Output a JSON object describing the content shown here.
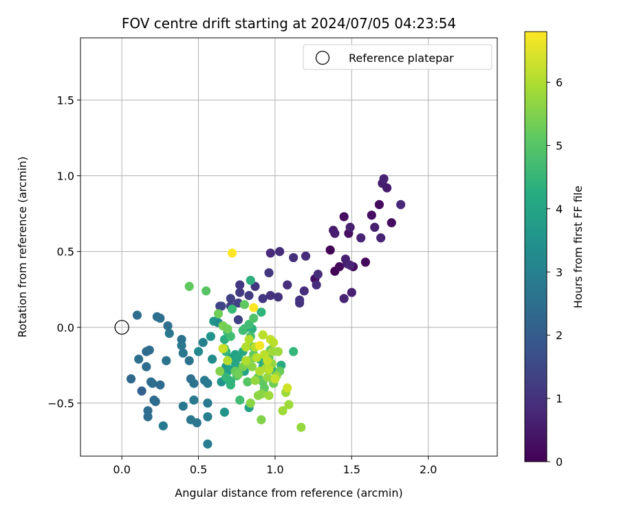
{
  "chart_data": {
    "type": "scatter",
    "title": "FOV centre drift starting at 2024/07/05 04:23:54",
    "xlabel": "Angular distance from reference (arcmin)",
    "ylabel": "Rotation from reference (arcmin)",
    "xlim": [
      -0.27,
      2.45
    ],
    "ylim": [
      -0.85,
      1.91
    ],
    "x_ticks": [
      0.0,
      0.5,
      1.0,
      1.5,
      2.0
    ],
    "x_tick_labels": [
      "0.0",
      "0.5",
      "1.0",
      "1.5",
      "2.0"
    ],
    "y_ticks": [
      -0.5,
      0.0,
      0.5,
      1.0,
      1.5
    ],
    "y_tick_labels": [
      "−0.5",
      "0.0",
      "0.5",
      "1.0",
      "1.5"
    ],
    "grid": true,
    "legend": {
      "placement": "top-right",
      "entries": [
        "Reference platepar"
      ]
    },
    "reference_point": {
      "x": 0.0,
      "y": 0.0,
      "label": "Reference platepar"
    },
    "colorbar": {
      "label": "Hours from first FF file",
      "range": [
        0,
        6.8
      ],
      "ticks": [
        0,
        1,
        2,
        3,
        4,
        5,
        6
      ],
      "tick_labels": [
        "0",
        "1",
        "2",
        "3",
        "4",
        "5",
        "6"
      ],
      "colormap": "viridis"
    },
    "series": [
      {
        "points": [
          [
            1.36,
            0.51,
            0.05
          ],
          [
            1.39,
            0.37,
            0.05
          ],
          [
            1.42,
            0.4,
            0.15
          ],
          [
            1.45,
            0.73,
            0.2
          ],
          [
            1.48,
            0.62,
            0.25
          ],
          [
            1.51,
            0.4,
            0.2
          ],
          [
            1.59,
            0.43,
            0.15
          ],
          [
            1.63,
            0.74,
            0.25
          ],
          [
            1.68,
            0.81,
            0.2
          ],
          [
            1.76,
            0.69,
            0.2
          ],
          [
            1.26,
            0.32,
            0.3
          ],
          [
            1.38,
            0.64,
            0.5
          ],
          [
            1.39,
            0.62,
            0.55
          ],
          [
            1.46,
            0.45,
            0.6
          ],
          [
            1.47,
            0.42,
            0.6
          ],
          [
            1.45,
            0.19,
            0.7
          ],
          [
            1.49,
            0.66,
            0.6
          ],
          [
            1.5,
            0.23,
            0.6
          ],
          [
            1.49,
            0.41,
            0.7
          ],
          [
            1.56,
            0.59,
            0.7
          ],
          [
            1.65,
            0.66,
            0.6
          ],
          [
            1.69,
            0.59,
            0.7
          ],
          [
            1.7,
            0.95,
            0.55
          ],
          [
            1.71,
            0.98,
            0.65
          ],
          [
            1.73,
            0.92,
            0.5
          ],
          [
            1.82,
            0.81,
            0.75
          ],
          [
            0.97,
            0.49,
            0.8
          ],
          [
            1.03,
            0.5,
            0.85
          ],
          [
            1.08,
            0.28,
            0.9
          ],
          [
            1.12,
            0.46,
            0.95
          ],
          [
            1.2,
            0.47,
            0.9
          ],
          [
            1.16,
            0.16,
            1.0
          ],
          [
            1.16,
            0.18,
            1.0
          ],
          [
            1.19,
            0.24,
            0.9
          ],
          [
            1.27,
            0.28,
            0.9
          ],
          [
            1.28,
            0.35,
            0.9
          ],
          [
            0.97,
            0.21,
            1.0
          ],
          [
            1.02,
            0.2,
            1.0
          ],
          [
            0.96,
            0.36,
            1.1
          ],
          [
            0.92,
            0.19,
            1.1
          ],
          [
            0.77,
            0.28,
            1.1
          ],
          [
            0.77,
            0.23,
            1.2
          ],
          [
            0.87,
            0.27,
            1.1
          ],
          [
            0.83,
            0.21,
            1.2
          ],
          [
            0.76,
            0.16,
            1.3
          ],
          [
            0.71,
            0.19,
            1.3
          ],
          [
            0.64,
            0.14,
            1.3
          ],
          [
            0.65,
            0.14,
            1.4
          ],
          [
            0.76,
            0.05,
            1.3
          ],
          [
            0.71,
            0.14,
            1.3
          ],
          [
            0.1,
            0.08,
            2.4
          ],
          [
            0.23,
            0.07,
            2.4
          ],
          [
            0.25,
            0.06,
            2.5
          ],
          [
            0.3,
            0.01,
            2.5
          ],
          [
            0.31,
            -0.04,
            2.7
          ],
          [
            0.11,
            -0.21,
            2.5
          ],
          [
            0.16,
            -0.16,
            2.3
          ],
          [
            0.18,
            -0.15,
            2.4
          ],
          [
            0.16,
            -0.26,
            2.4
          ],
          [
            0.06,
            -0.34,
            2.3
          ],
          [
            0.13,
            -0.42,
            2.1
          ],
          [
            0.19,
            -0.36,
            2.4
          ],
          [
            0.2,
            -0.37,
            2.4
          ],
          [
            0.25,
            -0.38,
            2.4
          ],
          [
            0.29,
            -0.22,
            2.6
          ],
          [
            0.17,
            -0.55,
            2.4
          ],
          [
            0.17,
            -0.59,
            2.4
          ],
          [
            0.21,
            -0.48,
            2.3
          ],
          [
            0.22,
            -0.49,
            2.4
          ],
          [
            0.27,
            -0.65,
            2.8
          ],
          [
            0.39,
            -0.08,
            2.6
          ],
          [
            0.39,
            -0.12,
            2.7
          ],
          [
            0.4,
            -0.17,
            2.7
          ],
          [
            0.44,
            -0.22,
            2.6
          ],
          [
            0.45,
            -0.34,
            2.5
          ],
          [
            0.47,
            -0.37,
            2.6
          ],
          [
            0.47,
            -0.48,
            2.8
          ],
          [
            0.4,
            -0.52,
            2.7
          ],
          [
            0.45,
            -0.61,
            2.7
          ],
          [
            0.49,
            -0.63,
            2.7
          ],
          [
            0.5,
            -0.16,
            3.2
          ],
          [
            0.53,
            -0.1,
            3.0
          ],
          [
            0.54,
            -0.35,
            2.8
          ],
          [
            0.56,
            -0.37,
            2.8
          ],
          [
            0.56,
            -0.5,
            2.8
          ],
          [
            0.56,
            -0.59,
            2.9
          ],
          [
            0.56,
            -0.77,
            2.9
          ],
          [
            0.58,
            -0.06,
            3.5
          ],
          [
            0.59,
            -0.21,
            3.3
          ],
          [
            0.6,
            0.04,
            3.6
          ],
          [
            0.63,
            0.03,
            3.3
          ],
          [
            0.66,
            0.01,
            3.3
          ],
          [
            0.66,
            -0.14,
            3.4
          ],
          [
            0.65,
            -0.36,
            3.5
          ],
          [
            0.67,
            -0.56,
            3.5
          ],
          [
            0.68,
            -0.26,
            3.6
          ],
          [
            0.69,
            -0.29,
            3.6
          ],
          [
            0.7,
            -0.28,
            3.8
          ],
          [
            0.71,
            -0.36,
            3.9
          ],
          [
            0.72,
            -0.2,
            3.8
          ],
          [
            0.74,
            -0.18,
            3.9
          ],
          [
            0.74,
            -0.24,
            4.0
          ],
          [
            0.75,
            -0.3,
            4.1
          ],
          [
            0.76,
            -0.2,
            4.0
          ],
          [
            0.78,
            -0.27,
            4.0
          ],
          [
            0.79,
            -0.16,
            4.1
          ],
          [
            0.8,
            -0.01,
            4.3
          ],
          [
            0.8,
            -0.29,
            3.9
          ],
          [
            0.83,
            -0.53,
            3.9
          ],
          [
            0.84,
            0.31,
            4.3
          ],
          [
            0.85,
            -0.01,
            4.3
          ],
          [
            0.87,
            -0.2,
            4.2
          ],
          [
            0.9,
            -0.21,
            4.3
          ],
          [
            0.91,
            0.1,
            4.4
          ],
          [
            0.92,
            -0.26,
            4.2
          ],
          [
            0.94,
            -0.22,
            4.3
          ],
          [
            0.98,
            -0.28,
            4.3
          ],
          [
            1.04,
            -0.25,
            4.2
          ],
          [
            1.12,
            -0.16,
            4.5
          ],
          [
            0.67,
            -0.08,
            4.2
          ],
          [
            0.68,
            -0.16,
            4.4
          ],
          [
            0.68,
            -0.33,
            4.5
          ],
          [
            0.7,
            -0.35,
            4.5
          ],
          [
            0.71,
            -0.38,
            4.4
          ],
          [
            0.69,
            -0.03,
            4.6
          ],
          [
            0.71,
            -0.06,
            4.7
          ],
          [
            0.72,
            0.12,
            4.6
          ],
          [
            0.79,
            -0.02,
            4.7
          ],
          [
            0.83,
            0.02,
            4.7
          ],
          [
            0.84,
            -0.06,
            4.8
          ],
          [
            0.86,
            -0.13,
            4.9
          ],
          [
            0.75,
            -0.32,
            4.8
          ],
          [
            0.77,
            -0.48,
            4.7
          ],
          [
            0.82,
            -0.36,
            5.0
          ],
          [
            0.87,
            -0.35,
            5.0
          ],
          [
            0.89,
            -0.33,
            5.0
          ],
          [
            0.92,
            -0.36,
            5.1
          ],
          [
            0.93,
            -0.4,
            5.1
          ],
          [
            0.86,
            0.06,
            4.9
          ],
          [
            0.67,
            -0.14,
            5.1
          ],
          [
            0.8,
            0.15,
            5.1
          ],
          [
            0.86,
            -0.18,
            5.1
          ],
          [
            0.96,
            -0.2,
            5.1
          ],
          [
            0.97,
            -0.15,
            5.2
          ],
          [
            0.99,
            -0.37,
            5.3
          ],
          [
            1.03,
            -0.29,
            5.2
          ],
          [
            0.44,
            0.27,
            5.1
          ],
          [
            0.55,
            0.24,
            5.0
          ],
          [
            0.63,
            0.09,
            5.3
          ],
          [
            0.64,
            -0.29,
            5.5
          ],
          [
            0.66,
            0.01,
            5.4
          ],
          [
            0.69,
            -0.01,
            5.3
          ],
          [
            0.74,
            -0.29,
            5.2
          ],
          [
            0.76,
            -0.31,
            5.3
          ],
          [
            0.79,
            -0.26,
            5.4
          ],
          [
            0.82,
            -0.24,
            5.5
          ],
          [
            0.83,
            -0.22,
            5.5
          ],
          [
            0.84,
            -0.5,
            5.6
          ],
          [
            0.85,
            -0.26,
            5.6
          ],
          [
            0.87,
            -0.35,
            5.7
          ],
          [
            0.89,
            -0.45,
            5.6
          ],
          [
            0.91,
            -0.61,
            5.5
          ],
          [
            0.91,
            -0.44,
            5.6
          ],
          [
            0.95,
            -0.33,
            5.7
          ],
          [
            0.96,
            -0.45,
            5.8
          ],
          [
            0.98,
            -0.24,
            5.7
          ],
          [
            0.98,
            -0.16,
            5.8
          ],
          [
            1.01,
            -0.32,
            5.7
          ],
          [
            1.02,
            -0.16,
            5.8
          ],
          [
            1.07,
            -0.43,
            5.8
          ],
          [
            1.09,
            -0.51,
            5.8
          ],
          [
            1.05,
            -0.55,
            5.8
          ],
          [
            1.17,
            -0.66,
            5.7
          ],
          [
            0.94,
            -0.27,
            5.9
          ],
          [
            0.69,
            -0.22,
            6.0
          ],
          [
            0.81,
            -0.22,
            6.0
          ],
          [
            0.81,
            -0.13,
            6.0
          ],
          [
            0.83,
            -0.08,
            6.0
          ],
          [
            0.87,
            -0.13,
            6.1
          ],
          [
            0.88,
            -0.2,
            6.1
          ],
          [
            0.9,
            -0.29,
            6.0
          ],
          [
            0.92,
            -0.05,
            6.1
          ],
          [
            0.93,
            -0.18,
            6.1
          ],
          [
            0.95,
            -0.22,
            6.2
          ],
          [
            0.96,
            -0.28,
            6.1
          ],
          [
            0.97,
            -0.08,
            6.2
          ],
          [
            0.99,
            -0.1,
            6.1
          ],
          [
            1.0,
            -0.34,
            6.2
          ],
          [
            1.08,
            -0.4,
            6.3
          ],
          [
            0.66,
            -0.14,
            6.3
          ],
          [
            0.9,
            -0.12,
            6.7
          ],
          [
            0.86,
            0.13,
            6.8
          ],
          [
            0.72,
            0.49,
            6.9
          ]
        ]
      }
    ]
  }
}
